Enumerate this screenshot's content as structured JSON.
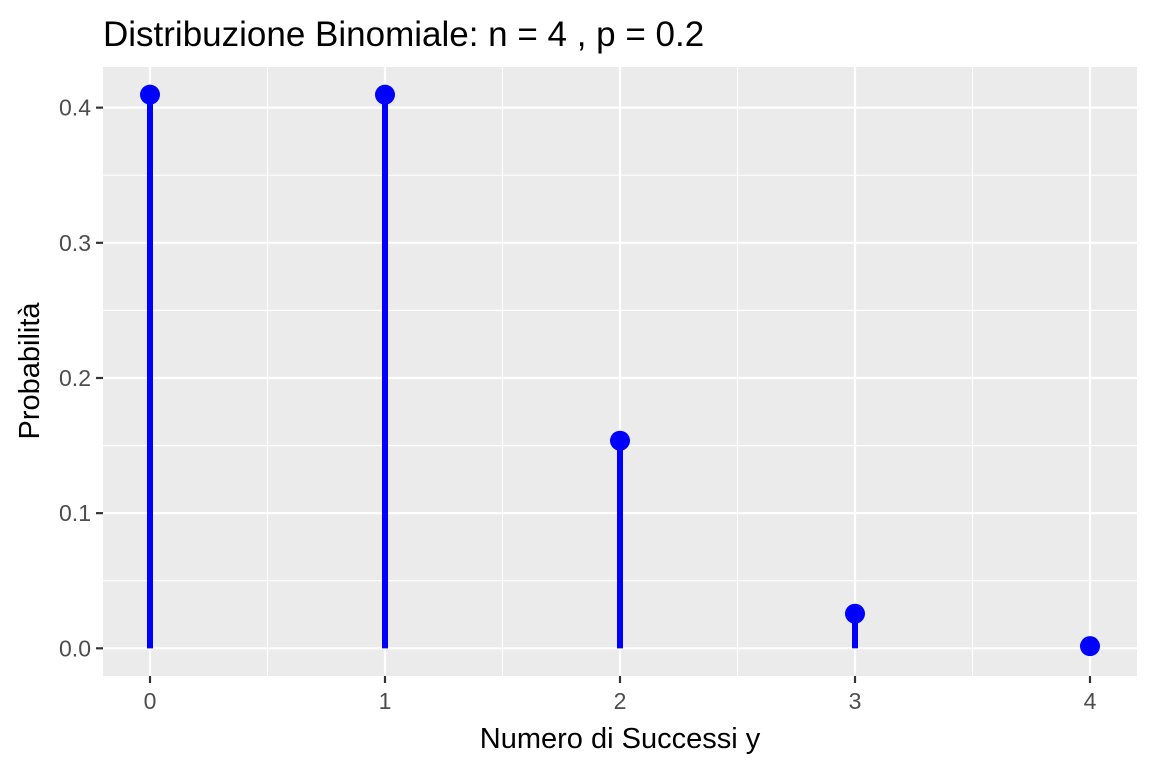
{
  "chart_data": {
    "type": "scatter",
    "title": "Distribuzione Binomiale: n = 4 , p = 0.2",
    "xlabel": "Numero di Successi y",
    "ylabel": "Probabilità",
    "x": [
      0,
      1,
      2,
      3,
      4
    ],
    "y": [
      0.4096,
      0.4096,
      0.1536,
      0.0256,
      0.0016
    ],
    "xlim": [
      -0.2,
      4.2
    ],
    "ylim": [
      -0.02048,
      0.43008
    ],
    "x_ticks": [
      0,
      1,
      2,
      3,
      4
    ],
    "x_tick_labels": [
      "0",
      "1",
      "2",
      "3",
      "4"
    ],
    "y_ticks": [
      0.0,
      0.1,
      0.2,
      0.3,
      0.4
    ],
    "y_tick_labels": [
      "0.0",
      "0.1",
      "0.2",
      "0.3",
      "0.4"
    ],
    "grid": true,
    "marker_color": "#0000ff",
    "panel_color": "#ebebeb",
    "grid_color": "#ffffff",
    "tick_label_color": "#4d4d4d"
  }
}
